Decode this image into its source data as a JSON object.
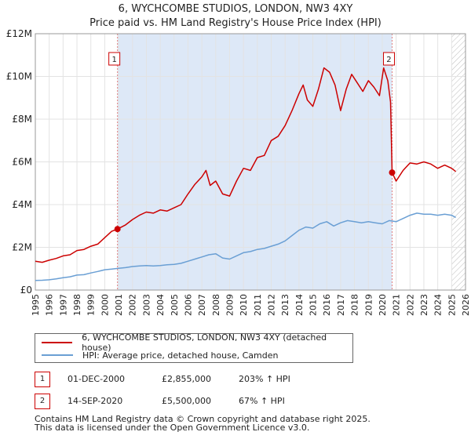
{
  "title_line1": "6, WYCHCOMBE STUDIOS, LONDON, NW3 4XY",
  "title_line2": "Price paid vs. HM Land Registry's House Price Index (HPI)",
  "colors": {
    "property": "#cc0000",
    "hpi": "#6a9fd4",
    "shade": "#dde8f7",
    "marker_border": "#cc0000"
  },
  "legend": {
    "property_label": "6, WYCHCOMBE STUDIOS, LONDON, NW3 4XY (detached house)",
    "hpi_label": "HPI: Average price, detached house, Camden"
  },
  "transactions": [
    {
      "num": "1",
      "date": "01-DEC-2000",
      "price": "£2,855,000",
      "hpi": "203% ↑ HPI"
    },
    {
      "num": "2",
      "date": "14-SEP-2020",
      "price": "£5,500,000",
      "hpi": "67% ↑ HPI"
    }
  ],
  "footer_line1": "Contains HM Land Registry data © Crown copyright and database right 2025.",
  "footer_line2": "This data is licensed under the Open Government Licence v3.0.",
  "chart_data": {
    "type": "line",
    "title": "6, WYCHCOMBE STUDIOS, LONDON, NW3 4XY",
    "subtitle": "Price paid vs. HM Land Registry's House Price Index (HPI)",
    "xlabel": "",
    "ylabel": "",
    "xlim": [
      1995,
      2026
    ],
    "ylim": [
      0,
      12000000
    ],
    "x_ticks": [
      1995,
      1996,
      1997,
      1998,
      1999,
      2000,
      2001,
      2002,
      2003,
      2004,
      2005,
      2006,
      2007,
      2008,
      2009,
      2010,
      2011,
      2012,
      2013,
      2014,
      2015,
      2016,
      2017,
      2018,
      2019,
      2020,
      2021,
      2022,
      2023,
      2024,
      2025,
      2026
    ],
    "y_ticks": [
      {
        "value": 0,
        "label": "£0"
      },
      {
        "value": 2000000,
        "label": "£2M"
      },
      {
        "value": 4000000,
        "label": "£4M"
      },
      {
        "value": 6000000,
        "label": "£6M"
      },
      {
        "value": 8000000,
        "label": "£8M"
      },
      {
        "value": 10000000,
        "label": "£10M"
      },
      {
        "value": 12000000,
        "label": "£12M"
      }
    ],
    "grid": true,
    "shaded_ranges": [
      [
        2000.92,
        2020.71
      ]
    ],
    "forecast_start": 2025.0,
    "series": [
      {
        "name": "6, WYCHCOMBE STUDIOS, LONDON, NW3 4XY (detached house)",
        "x": [
          1995.0,
          1995.5,
          1996.0,
          1996.5,
          1997.0,
          1997.5,
          1998.0,
          1998.5,
          1999.0,
          1999.5,
          2000.0,
          2000.5,
          2000.92,
          2001.5,
          2002.0,
          2002.5,
          2003.0,
          2003.5,
          2004.0,
          2004.5,
          2005.0,
          2005.5,
          2006.0,
          2006.5,
          2007.0,
          2007.3,
          2007.6,
          2008.0,
          2008.5,
          2009.0,
          2009.5,
          2010.0,
          2010.5,
          2011.0,
          2011.5,
          2012.0,
          2012.5,
          2013.0,
          2013.5,
          2014.0,
          2014.3,
          2014.6,
          2015.0,
          2015.4,
          2015.8,
          2016.2,
          2016.6,
          2017.0,
          2017.4,
          2017.8,
          2018.2,
          2018.6,
          2019.0,
          2019.4,
          2019.8,
          2020.1,
          2020.4,
          2020.6,
          2020.71,
          2021.0,
          2021.5,
          2022.0,
          2022.5,
          2023.0,
          2023.5,
          2024.0,
          2024.5,
          2025.0,
          2025.3
        ],
        "values": [
          1350000,
          1300000,
          1400000,
          1480000,
          1600000,
          1650000,
          1850000,
          1900000,
          2050000,
          2150000,
          2450000,
          2750000,
          2855000,
          3050000,
          3300000,
          3500000,
          3650000,
          3600000,
          3750000,
          3700000,
          3850000,
          4000000,
          4500000,
          4950000,
          5300000,
          5600000,
          4900000,
          5100000,
          4500000,
          4400000,
          5100000,
          5700000,
          5600000,
          6200000,
          6300000,
          7000000,
          7200000,
          7700000,
          8400000,
          9200000,
          9600000,
          8900000,
          8600000,
          9400000,
          10400000,
          10200000,
          9600000,
          8400000,
          9400000,
          10100000,
          9700000,
          9300000,
          9800000,
          9500000,
          9100000,
          10400000,
          9800000,
          8800000,
          5500000,
          5100000,
          5600000,
          5950000,
          5900000,
          6000000,
          5900000,
          5700000,
          5850000,
          5700000,
          5550000
        ]
      },
      {
        "name": "HPI: Average price, detached house, Camden",
        "x": [
          1995.0,
          1995.5,
          1996.0,
          1996.5,
          1997.0,
          1997.5,
          1998.0,
          1998.5,
          1999.0,
          1999.5,
          2000.0,
          2000.5,
          2001.0,
          2001.5,
          2002.0,
          2002.5,
          2003.0,
          2003.5,
          2004.0,
          2004.5,
          2005.0,
          2005.5,
          2006.0,
          2006.5,
          2007.0,
          2007.5,
          2008.0,
          2008.5,
          2009.0,
          2009.5,
          2010.0,
          2010.5,
          2011.0,
          2011.5,
          2012.0,
          2012.5,
          2013.0,
          2013.5,
          2014.0,
          2014.5,
          2015.0,
          2015.5,
          2016.0,
          2016.5,
          2017.0,
          2017.5,
          2018.0,
          2018.5,
          2019.0,
          2019.5,
          2020.0,
          2020.5,
          2021.0,
          2021.5,
          2022.0,
          2022.5,
          2023.0,
          2023.5,
          2024.0,
          2024.5,
          2025.0,
          2025.3
        ],
        "values": [
          450000,
          460000,
          480000,
          520000,
          580000,
          620000,
          700000,
          720000,
          800000,
          870000,
          950000,
          980000,
          1020000,
          1050000,
          1100000,
          1130000,
          1150000,
          1130000,
          1150000,
          1180000,
          1200000,
          1250000,
          1350000,
          1450000,
          1550000,
          1650000,
          1700000,
          1500000,
          1450000,
          1600000,
          1750000,
          1800000,
          1900000,
          1950000,
          2050000,
          2150000,
          2300000,
          2550000,
          2800000,
          2950000,
          2900000,
          3100000,
          3200000,
          3000000,
          3150000,
          3250000,
          3200000,
          3150000,
          3200000,
          3150000,
          3100000,
          3250000,
          3200000,
          3350000,
          3500000,
          3600000,
          3550000,
          3550000,
          3500000,
          3550000,
          3500000,
          3400000
        ]
      }
    ],
    "markers": [
      {
        "label": "1",
        "x": 2000.92,
        "y": 2855000
      },
      {
        "label": "2",
        "x": 2020.71,
        "y": 5500000
      }
    ],
    "legend_position": "below"
  }
}
